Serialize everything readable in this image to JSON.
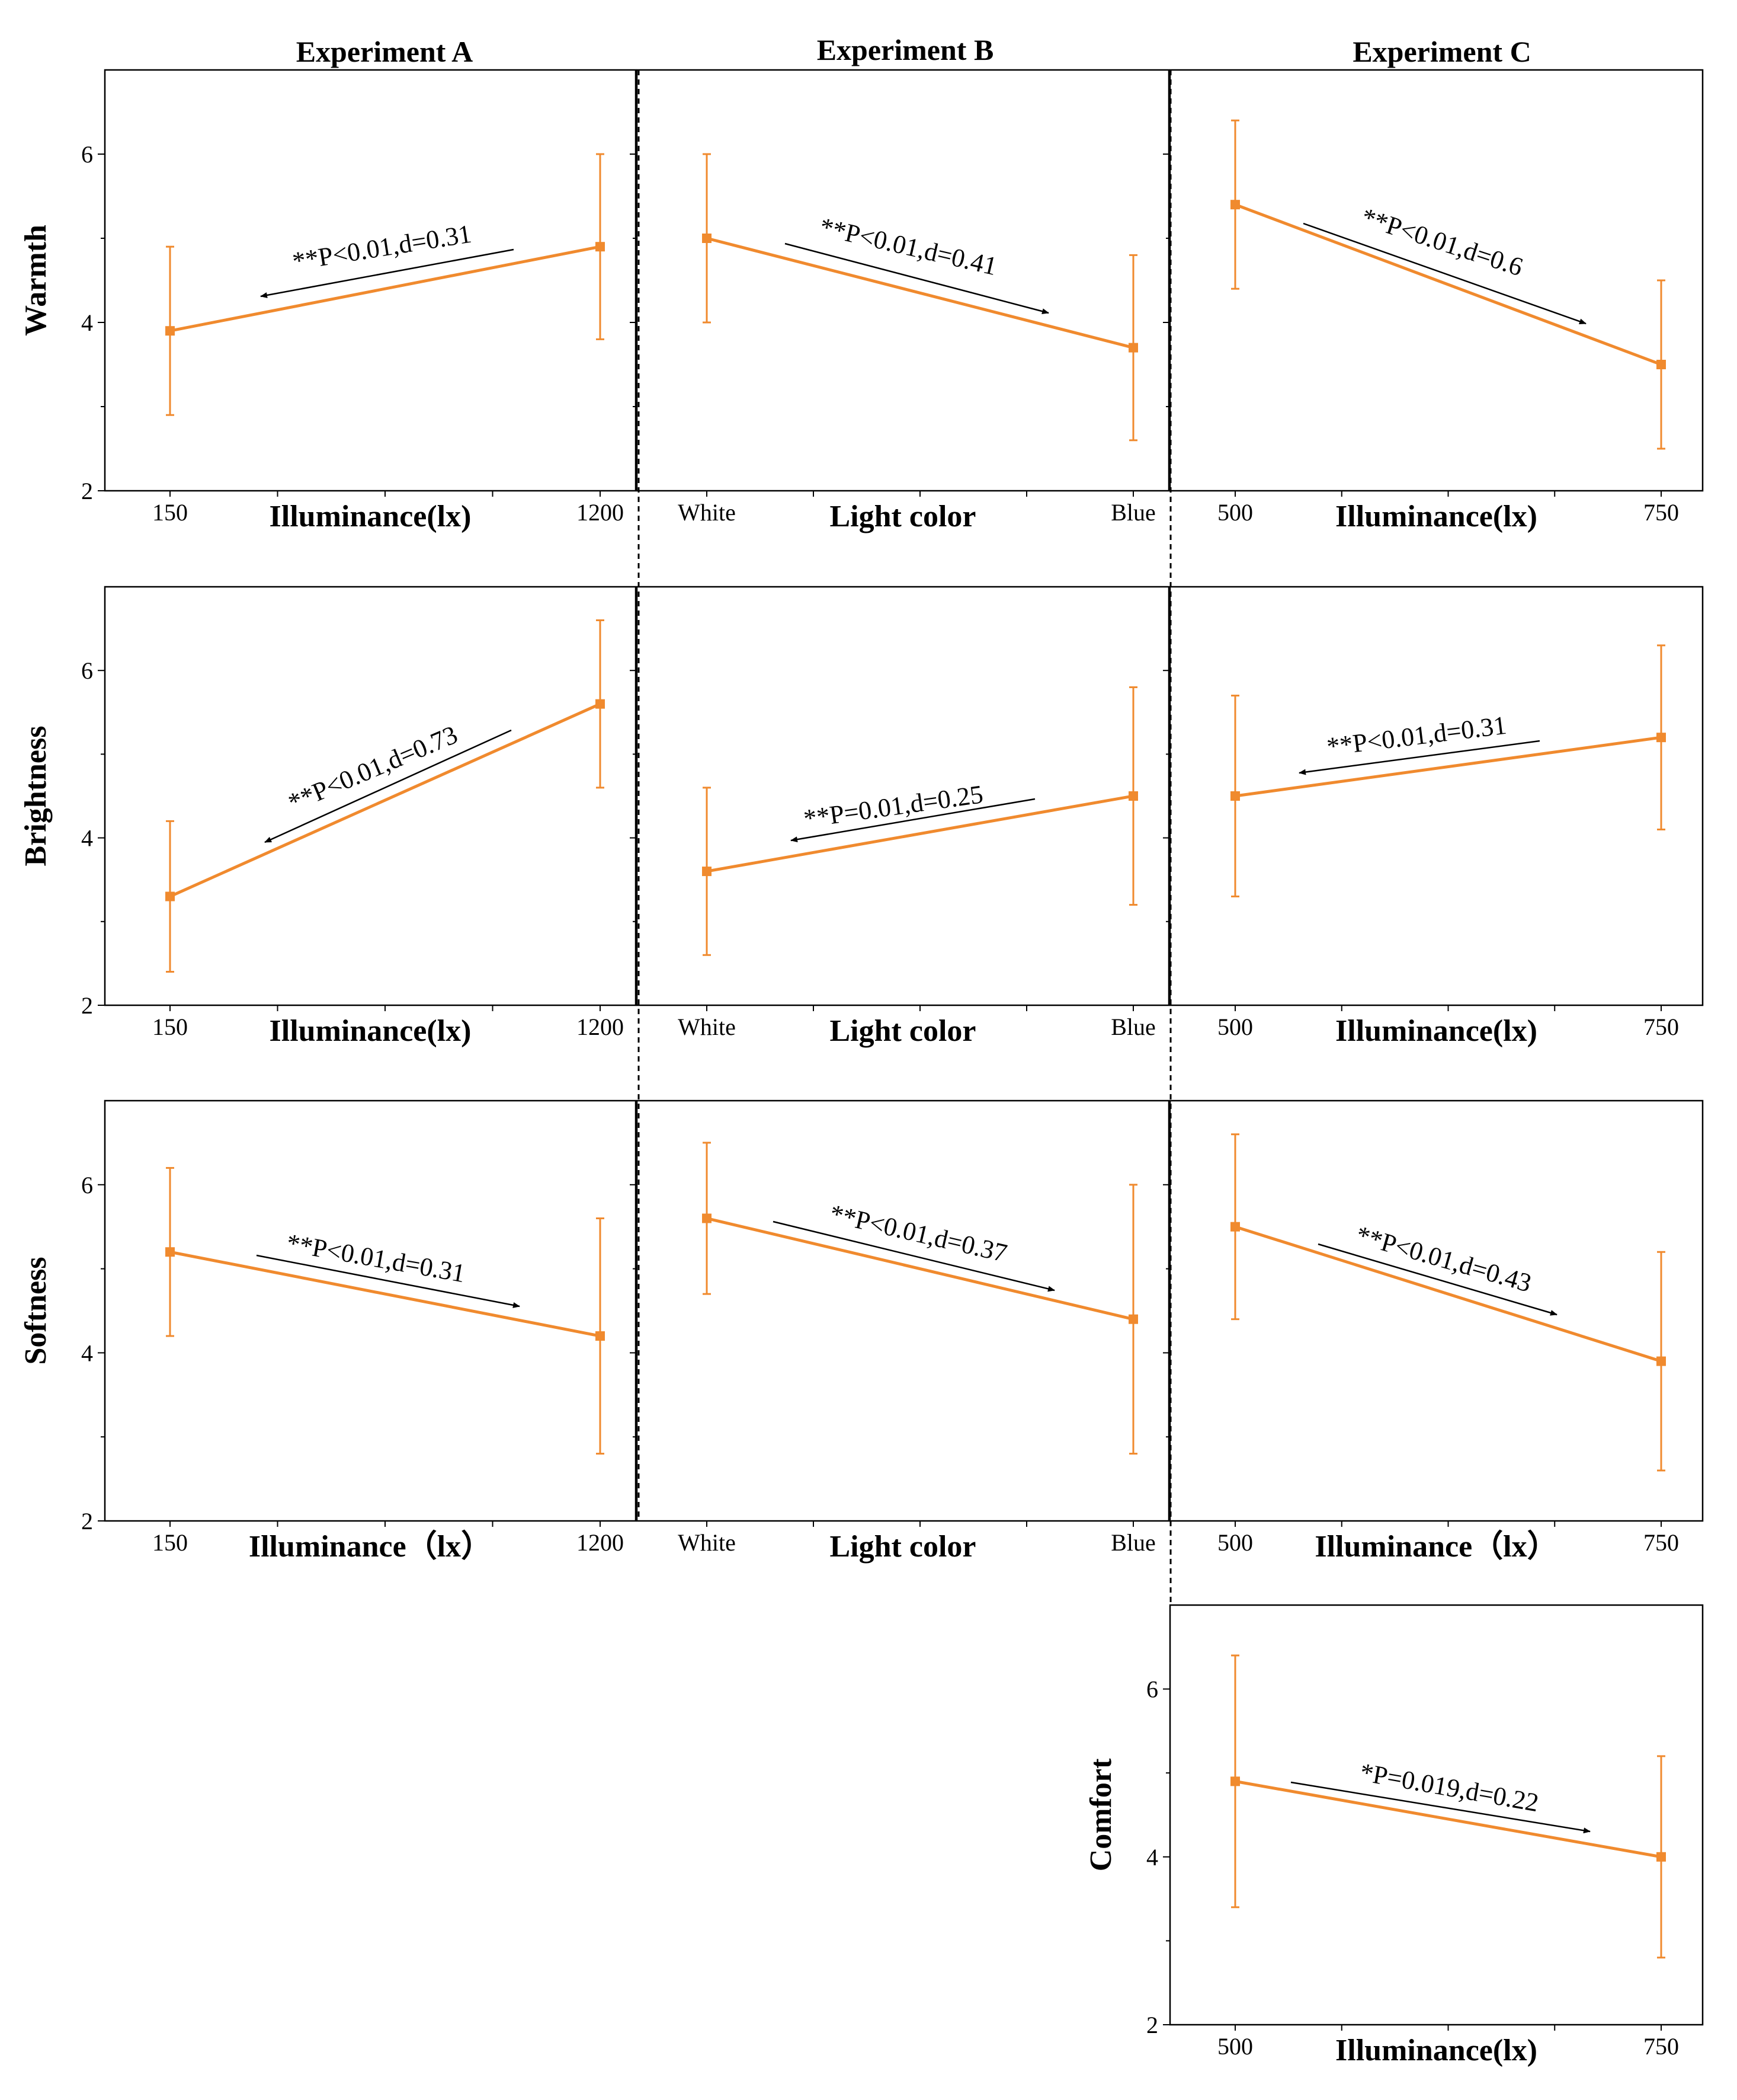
{
  "figure": {
    "column_titles": [
      "Experiment A",
      "Experiment B",
      "Experiment C"
    ],
    "colors": {
      "series": "#F08A2E",
      "axis": "#000000",
      "divider": "#000000"
    }
  },
  "chart_data": [
    {
      "id": "A-warmth",
      "type": "line",
      "ylabel": "Warmth",
      "xlabel": "Illuminance(lx)",
      "categories": [
        "150",
        "1200"
      ],
      "values": [
        3.9,
        4.9
      ],
      "error": [
        [
          2.9,
          4.9
        ],
        [
          3.8,
          6.0
        ]
      ],
      "ylim": [
        2,
        7
      ],
      "yticks": [
        2,
        4,
        6
      ],
      "annotation": "**P<0.01,d=0.31",
      "arrow": "left"
    },
    {
      "id": "B-warmth",
      "type": "line",
      "ylabel": "",
      "xlabel": "Light color",
      "categories": [
        "White",
        "Blue"
      ],
      "values": [
        5.0,
        3.7
      ],
      "error": [
        [
          4.0,
          6.0
        ],
        [
          2.6,
          4.8
        ]
      ],
      "ylim": [
        2,
        7
      ],
      "yticks": [],
      "annotation": "**P<0.01,d=0.41",
      "arrow": "right"
    },
    {
      "id": "C-warmth",
      "type": "line",
      "ylabel": "",
      "xlabel": "Illuminance(lx)",
      "categories": [
        "500",
        "750"
      ],
      "values": [
        5.4,
        3.5
      ],
      "error": [
        [
          4.4,
          6.4
        ],
        [
          2.5,
          4.5
        ]
      ],
      "ylim": [
        2,
        7
      ],
      "yticks": [],
      "annotation": "**P<0.01,d=0.6",
      "arrow": "right"
    },
    {
      "id": "A-brightness",
      "type": "line",
      "ylabel": "Brightness",
      "xlabel": "Illuminance(lx)",
      "categories": [
        "150",
        "1200"
      ],
      "values": [
        3.3,
        5.6
      ],
      "error": [
        [
          2.4,
          4.2
        ],
        [
          4.6,
          6.6
        ]
      ],
      "ylim": [
        2,
        7
      ],
      "yticks": [
        2,
        4,
        6
      ],
      "annotation": "**P<0.01,d=0.73",
      "arrow": "left"
    },
    {
      "id": "B-brightness",
      "type": "line",
      "ylabel": "",
      "xlabel": "Light color",
      "categories": [
        "White",
        "Blue"
      ],
      "values": [
        3.6,
        4.5
      ],
      "error": [
        [
          2.6,
          4.6
        ],
        [
          3.2,
          5.8
        ]
      ],
      "ylim": [
        2,
        7
      ],
      "yticks": [],
      "annotation": "**P=0.01,d=0.25",
      "arrow": "left"
    },
    {
      "id": "C-brightness",
      "type": "line",
      "ylabel": "",
      "xlabel": "Illuminance(lx)",
      "categories": [
        "500",
        "750"
      ],
      "values": [
        4.5,
        5.2
      ],
      "error": [
        [
          3.3,
          5.7
        ],
        [
          4.1,
          6.3
        ]
      ],
      "ylim": [
        2,
        7
      ],
      "yticks": [],
      "annotation": "**P<0.01,d=0.31",
      "arrow": "left"
    },
    {
      "id": "A-softness",
      "type": "line",
      "ylabel": "Softness",
      "xlabel": "Illuminance（lx）",
      "categories": [
        "150",
        "1200"
      ],
      "values": [
        5.2,
        4.2
      ],
      "error": [
        [
          4.2,
          6.2
        ],
        [
          2.8,
          5.6
        ]
      ],
      "ylim": [
        2,
        7
      ],
      "yticks": [
        2,
        4,
        6
      ],
      "annotation": "**P<0.01,d=0.31",
      "arrow": "right"
    },
    {
      "id": "B-softness",
      "type": "line",
      "ylabel": "",
      "xlabel": "Light color",
      "categories": [
        "White",
        "Blue"
      ],
      "values": [
        5.6,
        4.4
      ],
      "error": [
        [
          4.7,
          6.5
        ],
        [
          2.8,
          6.0
        ]
      ],
      "ylim": [
        2,
        7
      ],
      "yticks": [],
      "annotation": "**P<0.01,d=0.37",
      "arrow": "right"
    },
    {
      "id": "C-softness",
      "type": "line",
      "ylabel": "",
      "xlabel": "Illuminance（lx）",
      "categories": [
        "500",
        "750"
      ],
      "values": [
        5.5,
        3.9
      ],
      "error": [
        [
          4.4,
          6.6
        ],
        [
          2.6,
          5.2
        ]
      ],
      "ylim": [
        2,
        7
      ],
      "yticks": [],
      "annotation": "**P<0.01,d=0.43",
      "arrow": "right"
    },
    {
      "id": "C-comfort",
      "type": "line",
      "ylabel": "Comfort",
      "xlabel": "Illuminance(lx)",
      "categories": [
        "500",
        "750"
      ],
      "values": [
        4.9,
        4.0
      ],
      "error": [
        [
          3.4,
          6.4
        ],
        [
          2.8,
          5.2
        ]
      ],
      "ylim": [
        2,
        7
      ],
      "yticks": [
        2,
        4,
        6
      ],
      "annotation": "*P=0.019,d=0.22",
      "arrow": "right"
    }
  ]
}
